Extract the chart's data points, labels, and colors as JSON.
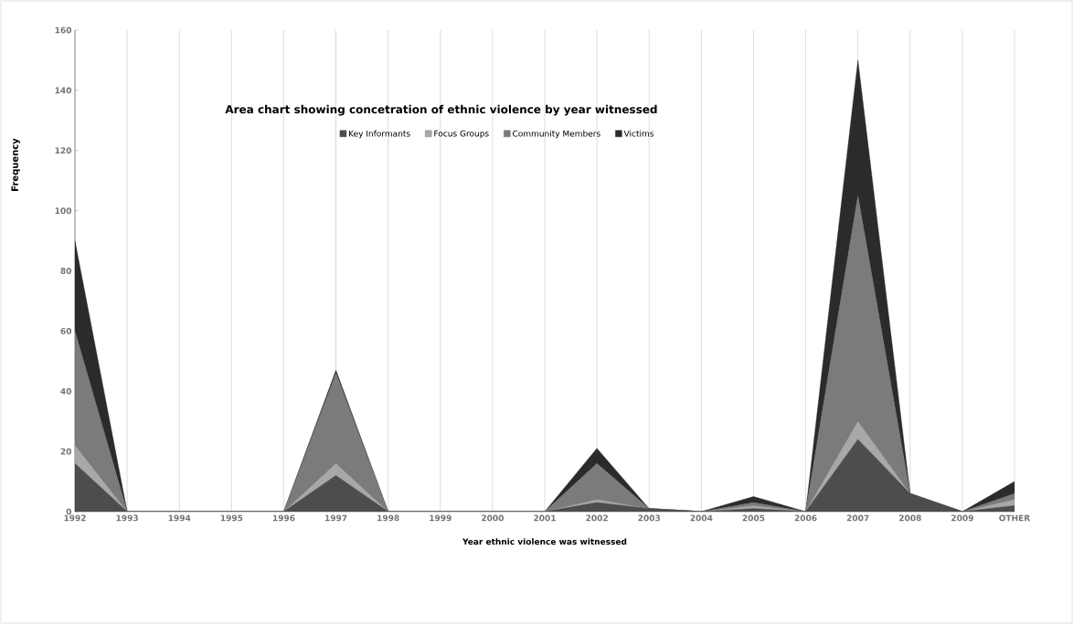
{
  "chart_data": {
    "type": "area",
    "stacked": true,
    "title": "Area chart showing concetration of ethnic violence by year witnessed",
    "xlabel": "Year ethnic violence  was witnessed",
    "ylabel": "Frequency",
    "categories": [
      "1992",
      "1993",
      "1994",
      "1995",
      "1996",
      "1997",
      "1998",
      "1999",
      "2000",
      "2001",
      "2002",
      "2003",
      "2004",
      "2005",
      "2006",
      "2007",
      "2008",
      "2009",
      "OTHER"
    ],
    "series": [
      {
        "name": "Key Informants",
        "color": "#4d4d4d",
        "values": [
          16,
          0,
          0,
          0,
          0,
          12,
          0,
          0,
          0,
          0,
          3,
          1,
          0,
          1,
          0,
          24,
          6,
          0,
          2
        ]
      },
      {
        "name": "Focus Groups",
        "color": "#a8a8a8",
        "values": [
          6,
          0,
          0,
          0,
          0,
          4,
          0,
          0,
          0,
          0,
          1,
          0,
          0,
          1,
          0,
          6,
          0,
          0,
          2
        ]
      },
      {
        "name": "Community Members",
        "color": "#7b7b7b",
        "values": [
          38,
          0,
          0,
          0,
          0,
          30,
          0,
          0,
          0,
          0,
          12,
          0,
          0,
          1,
          0,
          75,
          0,
          0,
          2
        ]
      },
      {
        "name": "Victims",
        "color": "#2b2b2b",
        "values": [
          30,
          0,
          0,
          0,
          0,
          1,
          0,
          0,
          0,
          0,
          5,
          0,
          0,
          2,
          0,
          45,
          0,
          0,
          4
        ]
      }
    ],
    "ylim": [
      0,
      160
    ],
    "yticks": [
      0,
      20,
      40,
      60,
      80,
      100,
      120,
      140,
      160
    ],
    "grid": "x",
    "legend": "top"
  }
}
